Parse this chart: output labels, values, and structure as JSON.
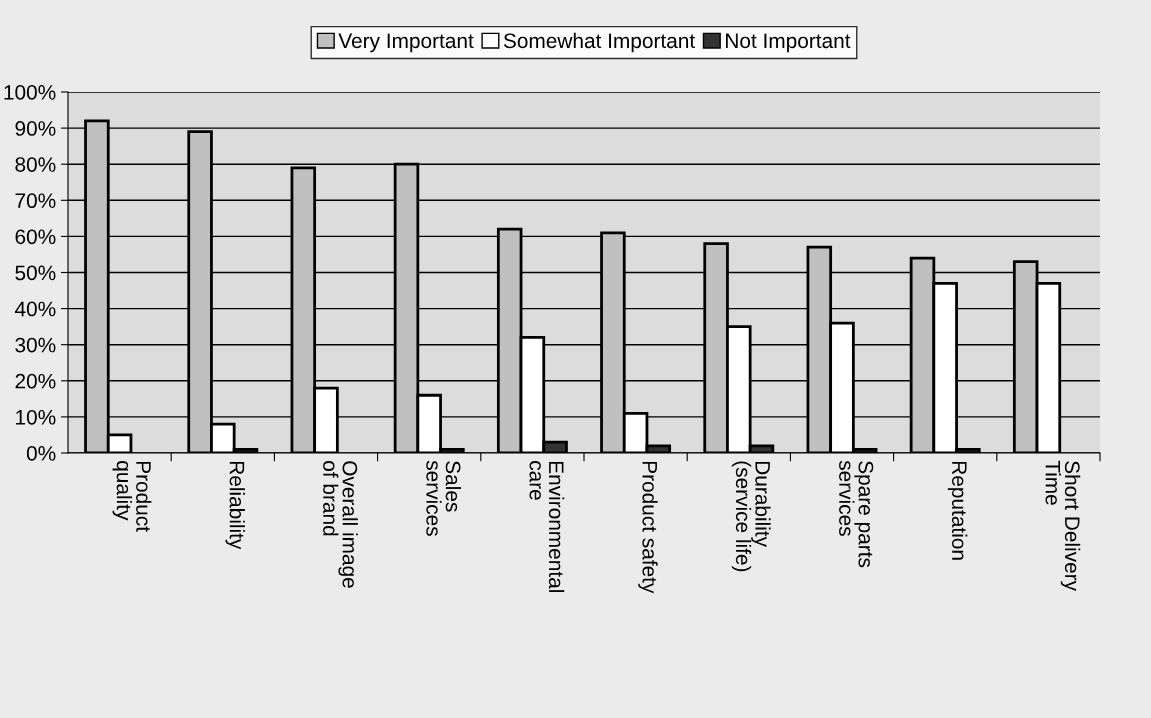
{
  "chart_data": {
    "type": "bar",
    "categories": [
      "Product\nquality",
      "Reliability",
      "Overall image\nof brand",
      "Sales\nservices",
      "Environmental\ncare",
      "Product safety",
      "Durability\n(service life)",
      "Spare parts\nservices",
      "Reputation",
      "Short Delivery\nTime"
    ],
    "series": [
      {
        "name": "Very Important",
        "color": "#c0c0c0",
        "values": [
          92,
          89,
          79,
          80,
          62,
          61,
          58,
          57,
          54,
          53
        ]
      },
      {
        "name": "Somewhat Important",
        "color": "#ffffff",
        "values": [
          5,
          8,
          18,
          16,
          32,
          11,
          35,
          36,
          47,
          47
        ]
      },
      {
        "name": "Not Important",
        "color": "#333333",
        "values": [
          null,
          1,
          null,
          1,
          3,
          2,
          2,
          1,
          1,
          null
        ]
      }
    ],
    "ylim": [
      0,
      100
    ],
    "yticks": [
      {
        "value": 0,
        "label": "0%"
      },
      {
        "value": 10,
        "label": "10%"
      },
      {
        "value": 20,
        "label": "20%"
      },
      {
        "value": 30,
        "label": "30%"
      },
      {
        "value": 40,
        "label": "40%"
      },
      {
        "value": 50,
        "label": "50%"
      },
      {
        "value": 60,
        "label": "60%"
      },
      {
        "value": 70,
        "label": "70%"
      },
      {
        "value": 80,
        "label": "80%"
      },
      {
        "value": 90,
        "label": "90%"
      },
      {
        "value": 100,
        "label": "100%"
      }
    ],
    "grid": "y",
    "legend": "top"
  }
}
